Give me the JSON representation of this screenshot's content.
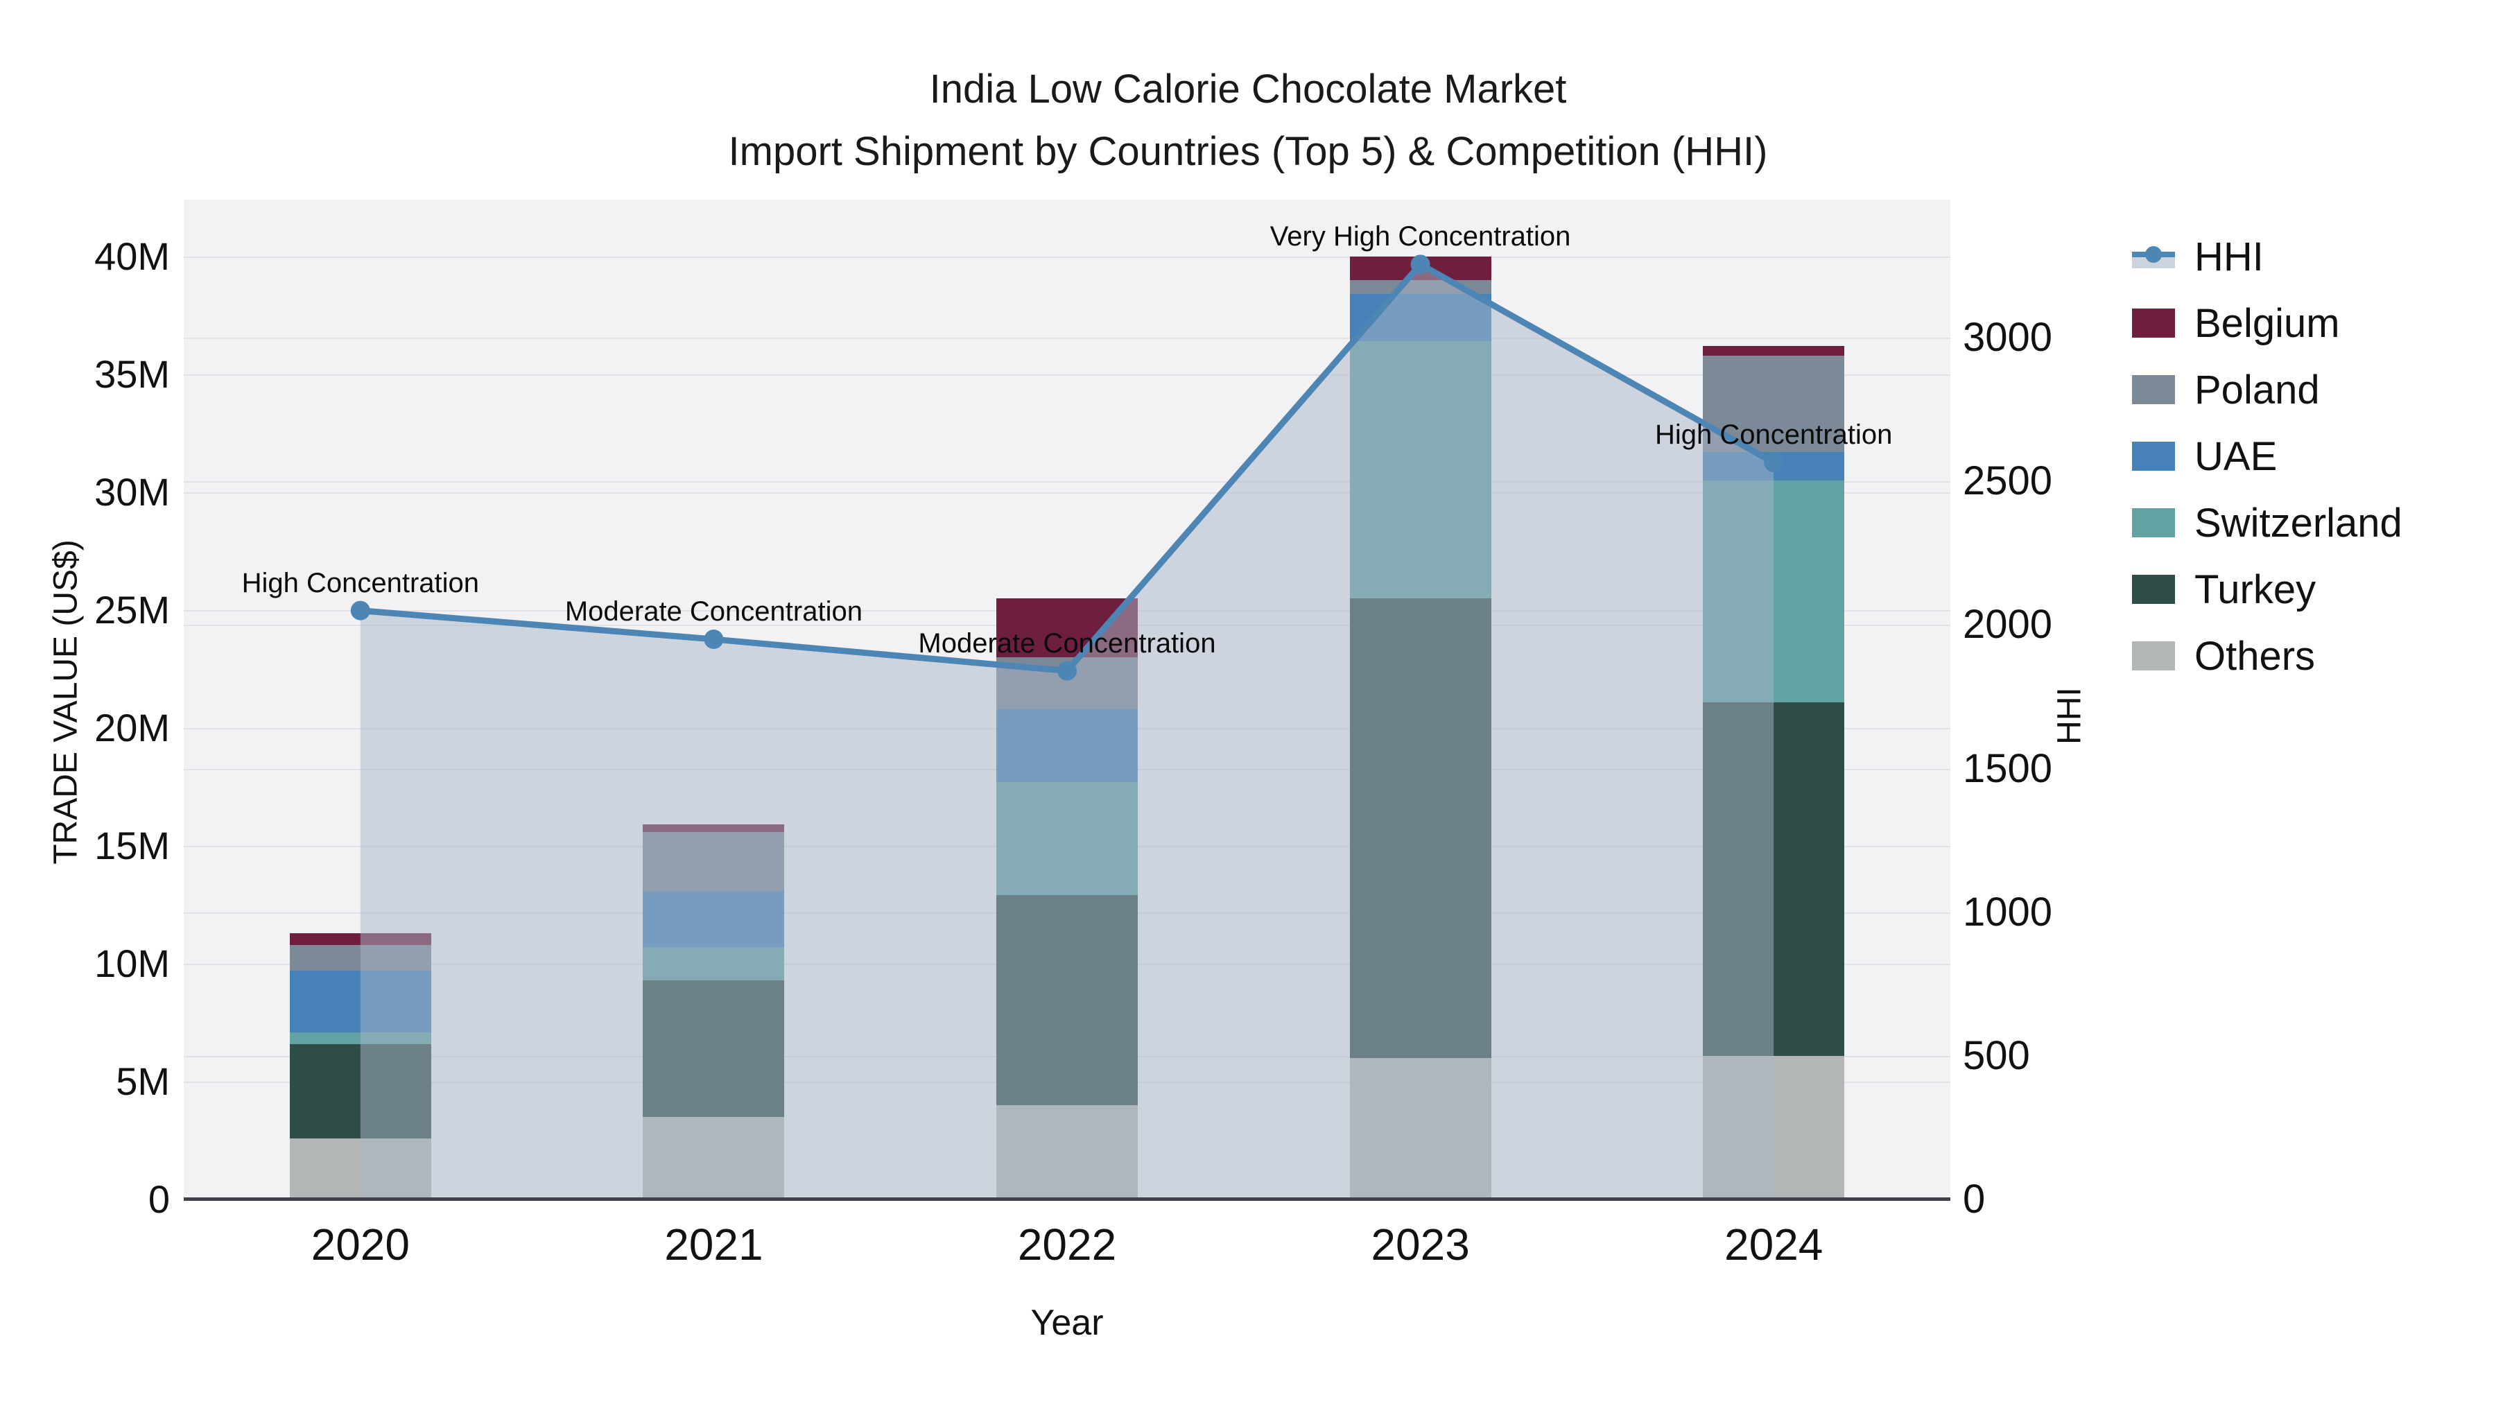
{
  "chart_data": {
    "type": "bar",
    "subtype": "stacked-bars-with-secondary-axis-line",
    "title_line1": "India Low Calorie Chocolate Market",
    "title_line2": "Import Shipment by Countries (Top 5) & Competition (HHI)",
    "xlabel": "Year",
    "ylabel_left": "TRADE VALUE (US$)",
    "ylabel_right": "HHI",
    "categories": [
      "2020",
      "2021",
      "2022",
      "2023",
      "2024"
    ],
    "stack_order_bottom_to_top": [
      "Others",
      "Turkey",
      "Switzerland",
      "UAE",
      "Poland",
      "Belgium"
    ],
    "series": [
      {
        "name": "Others",
        "color": "#b3b6b7",
        "values_musd": [
          2.6,
          3.5,
          4.0,
          6.0,
          6.1
        ]
      },
      {
        "name": "Turkey",
        "color": "#2e4d48",
        "values_musd": [
          4.0,
          5.8,
          8.9,
          19.5,
          15.0
        ]
      },
      {
        "name": "Switzerland",
        "color": "#61a2a2",
        "values_musd": [
          0.5,
          1.4,
          4.8,
          10.9,
          9.4
        ]
      },
      {
        "name": "UAE",
        "color": "#4682b8",
        "values_musd": [
          2.6,
          2.4,
          3.1,
          2.0,
          1.2
        ]
      },
      {
        "name": "Poland",
        "color": "#7c8997",
        "values_musd": [
          1.1,
          2.5,
          2.2,
          0.6,
          4.1
        ]
      },
      {
        "name": "Belgium",
        "color": "#6e1e3e",
        "values_musd": [
          0.5,
          0.3,
          2.5,
          1.0,
          0.4
        ]
      }
    ],
    "bar_totals_musd": [
      11.3,
      15.9,
      25.5,
      40.0,
      36.2
    ],
    "hhi": {
      "name": "HHI",
      "line_color": "#4d86b5",
      "band_color": "rgba(170,181,197,0.5)",
      "values": [
        2050,
        1950,
        1840,
        3255,
        2565
      ]
    },
    "annotations": [
      {
        "year": "2020",
        "text": "High Concentration"
      },
      {
        "year": "2021",
        "text": "Moderate Concentration"
      },
      {
        "year": "2022",
        "text": "Moderate Concentration"
      },
      {
        "year": "2023",
        "text": "Very High Concentration"
      },
      {
        "year": "2024",
        "text": "High Concentration"
      }
    ],
    "y_left_axis": {
      "tick_labels": [
        "0",
        "5M",
        "10M",
        "15M",
        "20M",
        "25M",
        "30M",
        "35M",
        "40M"
      ],
      "tick_values_musd": [
        0,
        5,
        10,
        15,
        20,
        25,
        30,
        35,
        40
      ],
      "lim_musd": [
        0,
        42.4
      ],
      "grid": true
    },
    "y_right_axis": {
      "tick_labels": [
        "0",
        "500",
        "1000",
        "1500",
        "2000",
        "2500",
        "3000"
      ],
      "tick_values": [
        0,
        500,
        1000,
        1500,
        2000,
        2500,
        3000
      ],
      "lim": [
        0,
        3480
      ],
      "grid": true
    },
    "legend": {
      "position": "right",
      "entries": [
        {
          "label": "HHI",
          "type": "line",
          "color": "#4d86b5"
        },
        {
          "label": "Belgium",
          "type": "patch",
          "color": "#6e1e3e"
        },
        {
          "label": "Poland",
          "type": "patch",
          "color": "#7c8997"
        },
        {
          "label": "UAE",
          "type": "patch",
          "color": "#4682b8"
        },
        {
          "label": "Switzerland",
          "type": "patch",
          "color": "#61a2a2"
        },
        {
          "label": "Turkey",
          "type": "patch",
          "color": "#2e4d48"
        },
        {
          "label": "Others",
          "type": "patch",
          "color": "#b3b6b7"
        }
      ]
    },
    "colors": {
      "plot_background": "#f2f2f4",
      "gridline": "#e2e2e6",
      "bottom_spine": "#3f4347",
      "page_background": "#ffffff"
    }
  }
}
